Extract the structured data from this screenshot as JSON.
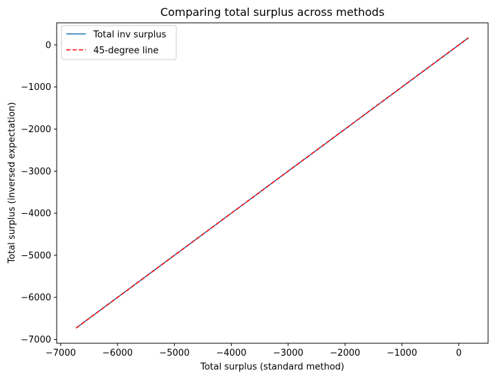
{
  "chart_data": {
    "type": "line",
    "title": "Comparing total surplus across methods",
    "xlabel": "Total surplus (standard method)",
    "ylabel": "Total surplus (inversed expectation)",
    "xlim": [
      -7070,
      515
    ],
    "ylim": [
      -7090,
      525
    ],
    "xticks": [
      -7000,
      -6000,
      -5000,
      -4000,
      -3000,
      -2000,
      -1000,
      0
    ],
    "yticks": [
      -7000,
      -6000,
      -5000,
      -4000,
      -3000,
      -2000,
      -1000,
      0
    ],
    "grid": false,
    "legend_position": "upper-left",
    "series": [
      {
        "name": "Total inv surplus",
        "color": "#1f77b4",
        "style": "solid",
        "x": [
          -6730,
          170
        ],
        "y": [
          -6730,
          170
        ]
      },
      {
        "name": "45-degree line",
        "color": "#ff0000",
        "style": "dashed",
        "x": [
          -6730,
          170
        ],
        "y": [
          -6730,
          170
        ]
      }
    ]
  }
}
